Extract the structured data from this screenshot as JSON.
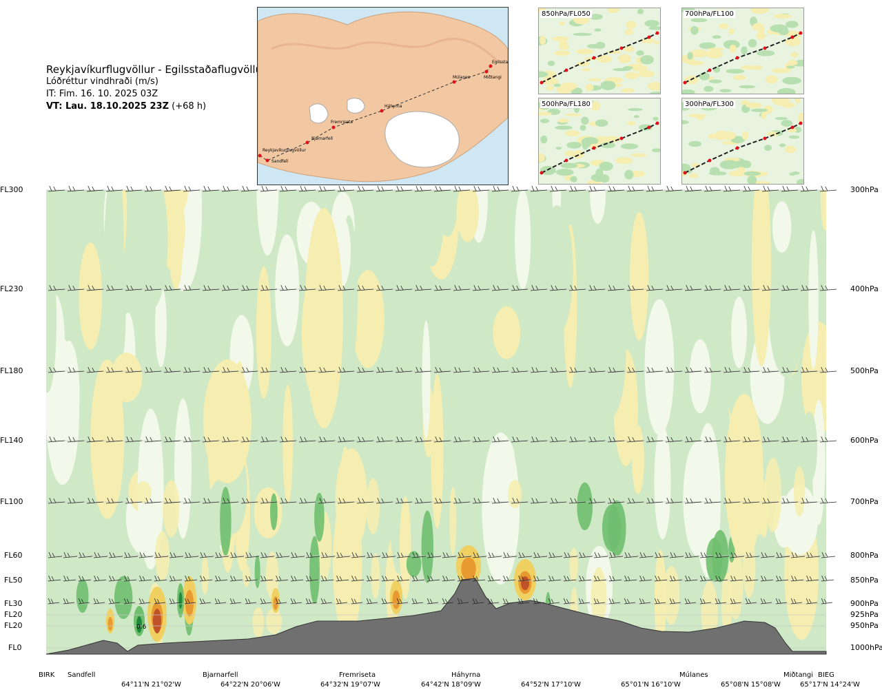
{
  "title": {
    "route": "Reykjavíkurflugvöllur - Egilsstaðaflugvöllur",
    "variable": "Lóðréttur vindhraði (m/s)",
    "it": "IT: Fim. 16. 10. 2025 03Z",
    "vt_bold": "VT: Lau. 18.10.2025 23Z",
    "vt_offset": "(+68 h)"
  },
  "map": {
    "waypoints": [
      "Reykjavíkurflugvöllur",
      "Sandfell",
      "Bjarnarfell",
      "Fremriseta",
      "Háhyrna",
      "Múlanes",
      "Miðtangi",
      "Egilsstaðir"
    ],
    "colors": {
      "sea": "#cfe6f3",
      "land": "#f2c8a2",
      "ice": "#ffffff",
      "route": "#333333",
      "point": "#e0101a"
    }
  },
  "panels": [
    {
      "label": "850hPa/FL050"
    },
    {
      "label": "700hPa/FL100"
    },
    {
      "label": "500hPa/FL180"
    },
    {
      "label": "300hPa/FL300"
    }
  ],
  "chart_data": {
    "type": "heatmap",
    "title": "Lóðréttur vindhraði (m/s)",
    "left_axis_labels": [
      "FL300",
      "FL230",
      "FL180",
      "FL140",
      "FL100",
      "FL60",
      "FL50",
      "FL30",
      "FL20",
      "FL20",
      "FL0"
    ],
    "right_axis_labels": [
      "300hPa",
      "400hPa",
      "500hPa",
      "600hPa",
      "700hPa",
      "800hPa",
      "850hPa",
      "900hPa",
      "925hPa",
      "950hPa",
      "1000hPa"
    ],
    "pressure_levels_hpa": [
      300,
      400,
      500,
      600,
      700,
      800,
      850,
      900,
      925,
      950,
      1000
    ],
    "x_stations": [
      "BIRK",
      "Sandfell",
      "Bjarnarfell",
      "Fremriseta",
      "Háhyrna",
      "Múlanes",
      "Miðtangi",
      "BIEG"
    ],
    "x_coordinates": [
      "64°11'N 21°02'W",
      "64°22'N 20°06'W",
      "64°32'N 19°07'W",
      "64°42'N 18°09'W",
      "64°52'N 17°10'W",
      "65°01'N 16°10'W",
      "65°08'N 15°08'W",
      "65°17'N 14°24'W"
    ],
    "annotations": [
      "0.6"
    ],
    "colors": {
      "down_strong": "#1f8a3a",
      "down_mid": "#6fbf6f",
      "down_weak": "#cfe8c6",
      "calm": "#f2f9ea",
      "up_weak": "#f5eeb0",
      "up_mid": "#f0d060",
      "up_strong": "#e89a30",
      "up_max": "#c0522a",
      "terrain": "#707070"
    },
    "grid": true
  }
}
